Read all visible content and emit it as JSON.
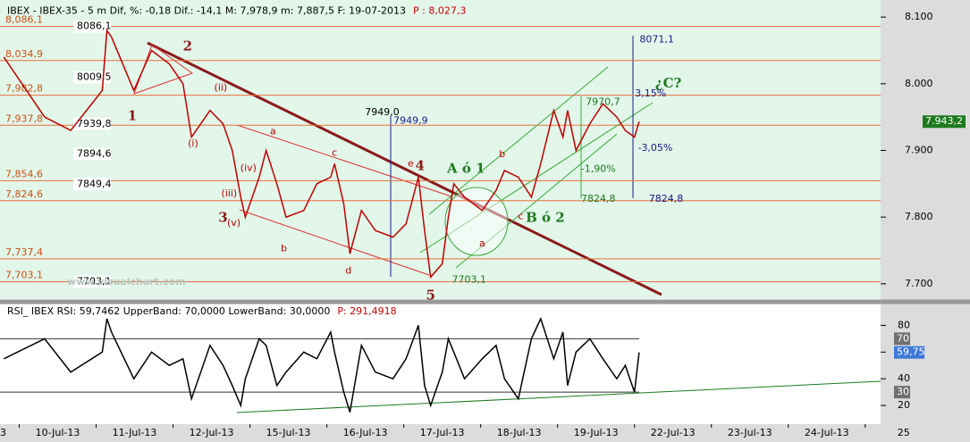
{
  "chart_data": [
    {
      "type": "line",
      "header": "IBEX - IBEX-35 -  5 m Dif, %: -0,18 Dif.: -14,1 M: 7,978,9 m: 7,887,5 F: 19-07-2013",
      "header_price": "P : 8,027,3",
      "watermark": "www.visualchart.com",
      "xlim": [
        -0.25,
        11.2
      ],
      "ylim": [
        7677,
        8110
      ],
      "yticks": [
        {
          "value": 7700,
          "label": "7.700"
        },
        {
          "value": 7800,
          "label": "7.800"
        },
        {
          "value": 7900,
          "label": "7.900"
        },
        {
          "value": 8000,
          "label": "8.000"
        },
        {
          "value": 8100,
          "label": "8.100"
        }
      ],
      "last": {
        "value": 7943.2,
        "label": "7.943,2"
      },
      "series": [
        {
          "color": "#c00000",
          "x": [
            -0.2,
            0.33,
            0.67,
            1.08,
            1.14,
            1.2,
            1.49,
            1.72,
            1.95,
            2.13,
            2.24,
            2.48,
            2.65,
            2.77,
            2.88,
            2.94,
            3.12,
            3.21,
            3.35,
            3.47,
            3.7,
            3.87,
            4.05,
            4.1,
            4.22,
            4.3,
            4.45,
            4.63,
            4.86,
            5.03,
            5.19,
            5.27,
            5.35,
            5.5,
            5.58,
            5.65,
            5.79,
            6.02,
            6.2,
            6.31,
            6.49,
            6.66,
            6.78,
            6.95,
            7.07,
            7.13,
            7.24,
            7.42,
            7.59,
            7.77,
            7.88,
            8.0,
            8.06
          ],
          "values": [
            8040,
            7950,
            7930,
            7990,
            8080,
            8070,
            7990,
            8050,
            8030,
            8000,
            7920,
            7960,
            7940,
            7900,
            7830,
            7800,
            7860,
            7900,
            7850,
            7800,
            7810,
            7850,
            7860,
            7880,
            7820,
            7745,
            7810,
            7780,
            7770,
            7790,
            7860,
            7780,
            7710,
            7730,
            7800,
            7850,
            7830,
            7810,
            7840,
            7870,
            7860,
            7830,
            7880,
            7960,
            7920,
            7960,
            7900,
            7940,
            7970,
            7950,
            7930,
            7920,
            7943.2
          ]
        }
      ],
      "levels": [
        {
          "value": 8086.1,
          "label": "8,086,1"
        },
        {
          "value": 8034.9,
          "label": "8,034,9"
        },
        {
          "value": 7982.8,
          "label": "7,982,8"
        },
        {
          "value": 7937.8,
          "label": "7,937,8"
        },
        {
          "value": 7854.6,
          "label": "7,854,6"
        },
        {
          "value": 7824.6,
          "label": "7,824,6"
        },
        {
          "value": 7737.4,
          "label": "7,737,4"
        },
        {
          "value": 7703.1,
          "label": "7,703,1"
        }
      ],
      "inner_labels": [
        {
          "value": 8086.1,
          "label": "8086,1"
        },
        {
          "value": 8009.5,
          "label": "8009,5"
        },
        {
          "value": 7939.8,
          "label": "7939,8"
        },
        {
          "value": 7894.6,
          "label": "7894,6"
        },
        {
          "value": 7849.4,
          "label": "7849,4"
        },
        {
          "value": 7703.1,
          "label": "7703,1"
        }
      ],
      "annotations": [
        {
          "text": "1",
          "x": 1.47,
          "y": 7951,
          "color": "#8b1a1a"
        },
        {
          "text": "2",
          "x": 2.19,
          "y": 8055,
          "color": "#8b1a1a"
        },
        {
          "text": "3",
          "x": 2.65,
          "y": 7798,
          "color": "#8b1a1a"
        },
        {
          "text": "4",
          "x": 5.21,
          "y": 7876,
          "color": "#8b1a1a"
        },
        {
          "text": "5",
          "x": 5.35,
          "y": 7682,
          "color": "#8b1a1a"
        },
        {
          "text": "(ii)",
          "x": 2.62,
          "y": 7994,
          "color": "#c00000"
        },
        {
          "text": "(i)",
          "x": 2.26,
          "y": 7910,
          "color": "#c00000"
        },
        {
          "text": "(iv)",
          "x": 2.98,
          "y": 7873,
          "color": "#c00000"
        },
        {
          "text": "(iii)",
          "x": 2.73,
          "y": 7835,
          "color": "#c00000"
        },
        {
          "text": "(v)",
          "x": 2.79,
          "y": 7791,
          "color": "#c00000"
        },
        {
          "text": "a",
          "x": 3.3,
          "y": 7928,
          "color": "#c00000"
        },
        {
          "text": "b",
          "x": 3.44,
          "y": 7753,
          "color": "#c00000"
        },
        {
          "text": "c",
          "x": 4.1,
          "y": 7896,
          "color": "#c00000"
        },
        {
          "text": "d",
          "x": 4.28,
          "y": 7719,
          "color": "#c00000"
        },
        {
          "text": "e",
          "x": 5.09,
          "y": 7880,
          "color": "#c00000"
        },
        {
          "text": "A ó 1",
          "x": 5.81,
          "y": 7872,
          "color": "#1e7a1e"
        },
        {
          "text": "B ó 2",
          "x": 6.84,
          "y": 7798,
          "color": "#1e7a1e"
        },
        {
          "text": "¿C?",
          "x": 8.44,
          "y": 8000,
          "color": "#1e7a1e"
        },
        {
          "text": "a",
          "x": 6.02,
          "y": 7760,
          "color": "#c00000"
        },
        {
          "text": "b",
          "x": 6.28,
          "y": 7894,
          "color": "#c00000"
        },
        {
          "text": "c",
          "x": 6.52,
          "y": 7801,
          "color": "#c00000"
        },
        {
          "text": "8071,1",
          "x": 8.29,
          "y": 8066,
          "color": "#1a1a8b"
        },
        {
          "text": "3,15%",
          "x": 8.21,
          "y": 7985,
          "color": "#1a1a8b"
        },
        {
          "text": "-3,05%",
          "x": 8.27,
          "y": 7903,
          "color": "#1a1a8b"
        },
        {
          "text": "7824,8",
          "x": 8.41,
          "y": 7827,
          "color": "#1a1a8b"
        },
        {
          "text": "7949,9",
          "x": 5.09,
          "y": 7944,
          "color": "#1a1a8b"
        },
        {
          "text": "7949,0",
          "x": 4.72,
          "y": 7957,
          "color": "#000000"
        },
        {
          "text": "7703,1",
          "x": 5.85,
          "y": 7706,
          "color": "#1e7a1e"
        },
        {
          "text": "7824,8",
          "x": 7.53,
          "y": 7827,
          "color": "#1e7a1e"
        },
        {
          "text": "-1,90%",
          "x": 7.53,
          "y": 7872,
          "color": "#1e7a1e"
        },
        {
          "text": "7970,7",
          "x": 7.59,
          "y": 7972,
          "color": "#1e7a1e"
        }
      ]
    },
    {
      "type": "line",
      "header": "RSI_ IBEX RSI: 59,7462 UpperBand: 70,0000 LowerBand: 30,0000",
      "header_price": "P: 291,4918",
      "xlim": [
        -0.25,
        11.2
      ],
      "ylim": [
        6,
        95
      ],
      "yticks": [
        20,
        40,
        60,
        80
      ],
      "bands": [
        {
          "value": 70,
          "label": "70"
        },
        {
          "value": 30,
          "label": "30"
        }
      ],
      "last": {
        "value": 59.75,
        "label": "59,75"
      },
      "xticks": [
        {
          "value": -1,
          "label": "3"
        },
        {
          "value": 0,
          "label": "10-Jul-13"
        },
        {
          "value": 1,
          "label": "11-Jul-13"
        },
        {
          "value": 2,
          "label": "12-Jul-13"
        },
        {
          "value": 3,
          "label": "15-Jul-13"
        },
        {
          "value": 4,
          "label": "16-Jul-13"
        },
        {
          "value": 5,
          "label": "17-Jul-13"
        },
        {
          "value": 6,
          "label": "18-Jul-13"
        },
        {
          "value": 7,
          "label": "19-Jul-13"
        },
        {
          "value": 8,
          "label": "22-Jul-13"
        },
        {
          "value": 9,
          "label": "23-Jul-13"
        },
        {
          "value": 10,
          "label": "24-Jul-13"
        },
        {
          "value": 11,
          "label": "25"
        }
      ],
      "series": [
        {
          "color": "#000000",
          "x": [
            -0.2,
            0.33,
            0.67,
            1.08,
            1.14,
            1.2,
            1.49,
            1.72,
            1.95,
            2.13,
            2.24,
            2.48,
            2.65,
            2.77,
            2.88,
            2.94,
            3.12,
            3.21,
            3.35,
            3.47,
            3.7,
            3.87,
            4.05,
            4.1,
            4.22,
            4.3,
            4.45,
            4.63,
            4.86,
            5.03,
            5.19,
            5.27,
            5.35,
            5.5,
            5.58,
            5.65,
            5.79,
            6.02,
            6.2,
            6.31,
            6.49,
            6.66,
            6.78,
            6.95,
            7.07,
            7.13,
            7.24,
            7.42,
            7.59,
            7.77,
            7.88,
            8.0,
            8.06
          ],
          "values": [
            55,
            70,
            45,
            60,
            85,
            75,
            40,
            60,
            50,
            55,
            25,
            65,
            50,
            35,
            20,
            40,
            70,
            65,
            35,
            45,
            60,
            55,
            75,
            60,
            30,
            15,
            65,
            45,
            40,
            55,
            80,
            35,
            20,
            45,
            70,
            60,
            40,
            55,
            65,
            40,
            25,
            70,
            85,
            55,
            75,
            35,
            60,
            70,
            55,
            40,
            50,
            30,
            59.7462
          ]
        }
      ]
    }
  ]
}
